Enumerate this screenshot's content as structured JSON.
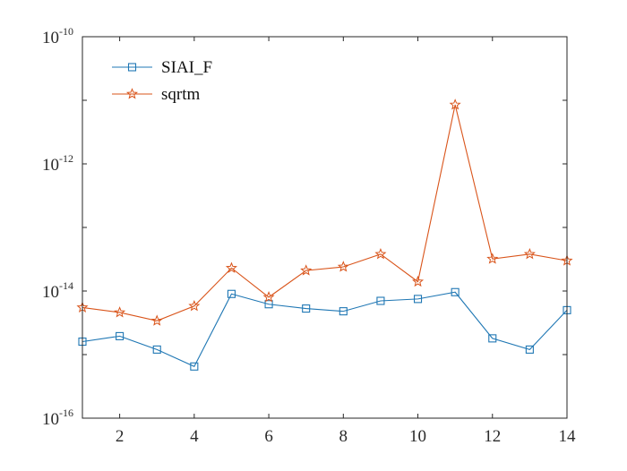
{
  "chart_data": {
    "type": "line",
    "title": "",
    "xlabel": "",
    "ylabel": "",
    "x": [
      1,
      2,
      3,
      4,
      5,
      6,
      7,
      8,
      9,
      10,
      11,
      12,
      13,
      14
    ],
    "xlim": [
      1,
      14
    ],
    "xticks": [
      2,
      4,
      6,
      8,
      10,
      12,
      14
    ],
    "y_scale": "log",
    "ylim": [
      1e-16,
      1e-10
    ],
    "yticks": [
      {
        "base": "10",
        "exp": "-16",
        "value": 1e-16
      },
      {
        "base": "10",
        "exp": "-14",
        "value": 1e-14
      },
      {
        "base": "10",
        "exp": "-12",
        "value": 1e-12
      },
      {
        "base": "10",
        "exp": "-10",
        "value": 1e-10
      }
    ],
    "grid": false,
    "legend_position": "top-left",
    "series": [
      {
        "name": "SIAI_F",
        "color": "#1f77b4",
        "marker": "square",
        "values": [
          1.6e-15,
          1.95e-15,
          1.2e-15,
          6.5e-16,
          9e-15,
          6.2e-15,
          5.3e-15,
          4.8e-15,
          7e-15,
          7.5e-15,
          9.6e-15,
          1.8e-15,
          1.2e-15,
          5e-15
        ]
      },
      {
        "name": "sqrtm",
        "color": "#d9541a",
        "marker": "star",
        "values": [
          5.5e-15,
          4.6e-15,
          3.4e-15,
          5.8e-15,
          2.3e-14,
          8e-15,
          2.1e-14,
          2.4e-14,
          3.8e-14,
          1.4e-14,
          8.5e-12,
          3.2e-14,
          3.8e-14,
          3e-14
        ]
      }
    ]
  }
}
